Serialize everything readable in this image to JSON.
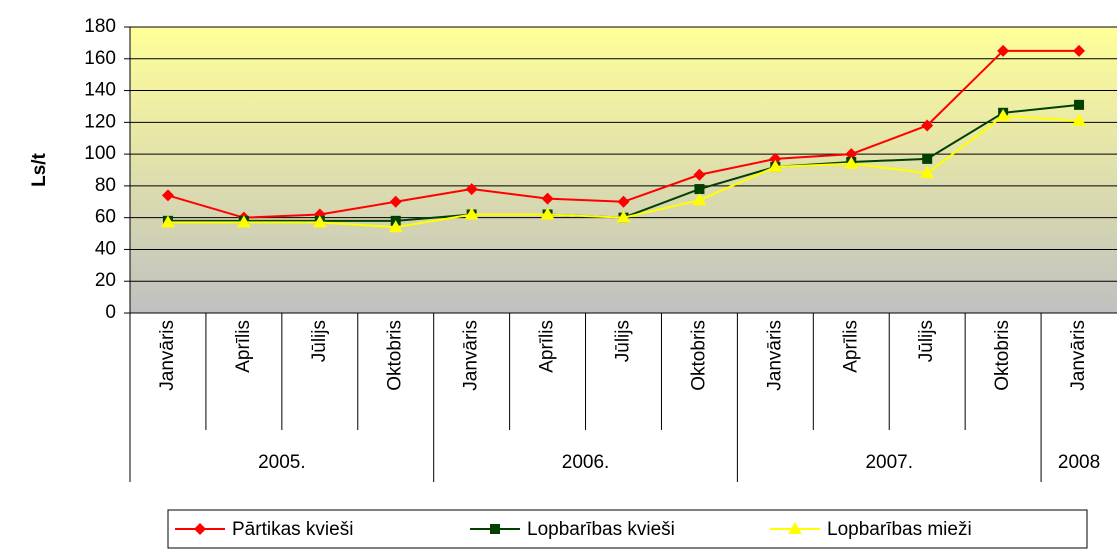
{
  "chart_data": {
    "type": "line",
    "y_label": "Ls/t",
    "categories": [
      "Janvāris",
      "Aprīlis",
      "Jūlijs",
      "Oktobris",
      "Janvāris",
      "Aprīlis",
      "Jūlijs",
      "Oktobris",
      "Janvāris",
      "Aprīlis",
      "Jūlijs",
      "Oktobris",
      "Janvāris"
    ],
    "groups": [
      {
        "label": "2005.",
        "span": 4
      },
      {
        "label": "2006.",
        "span": 4
      },
      {
        "label": "2007.",
        "span": 4
      },
      {
        "label": "2008",
        "span": 1
      }
    ],
    "series": [
      {
        "name": "Pārtikas kvieši",
        "color": "#ff0000",
        "marker": "diamond",
        "values": [
          74,
          60,
          62,
          70,
          78,
          72,
          70,
          87,
          97,
          100,
          118,
          165,
          165
        ]
      },
      {
        "name": "Lopbarības kvieši",
        "color": "#004000",
        "marker": "square",
        "values": [
          58,
          58,
          58,
          58,
          62,
          62,
          60,
          78,
          92,
          95,
          97,
          126,
          131
        ]
      },
      {
        "name": "Lopbarības mieži",
        "color": "#ffff00",
        "marker": "triangle",
        "values": [
          57,
          57,
          57,
          54,
          62,
          62,
          60,
          71,
          92,
          94,
          88,
          124,
          121
        ]
      }
    ],
    "ylim": [
      0,
      180
    ],
    "yticks": [
      0,
      20,
      40,
      60,
      80,
      100,
      120,
      140,
      160,
      180
    ],
    "grid": true,
    "legend": "bottom"
  }
}
